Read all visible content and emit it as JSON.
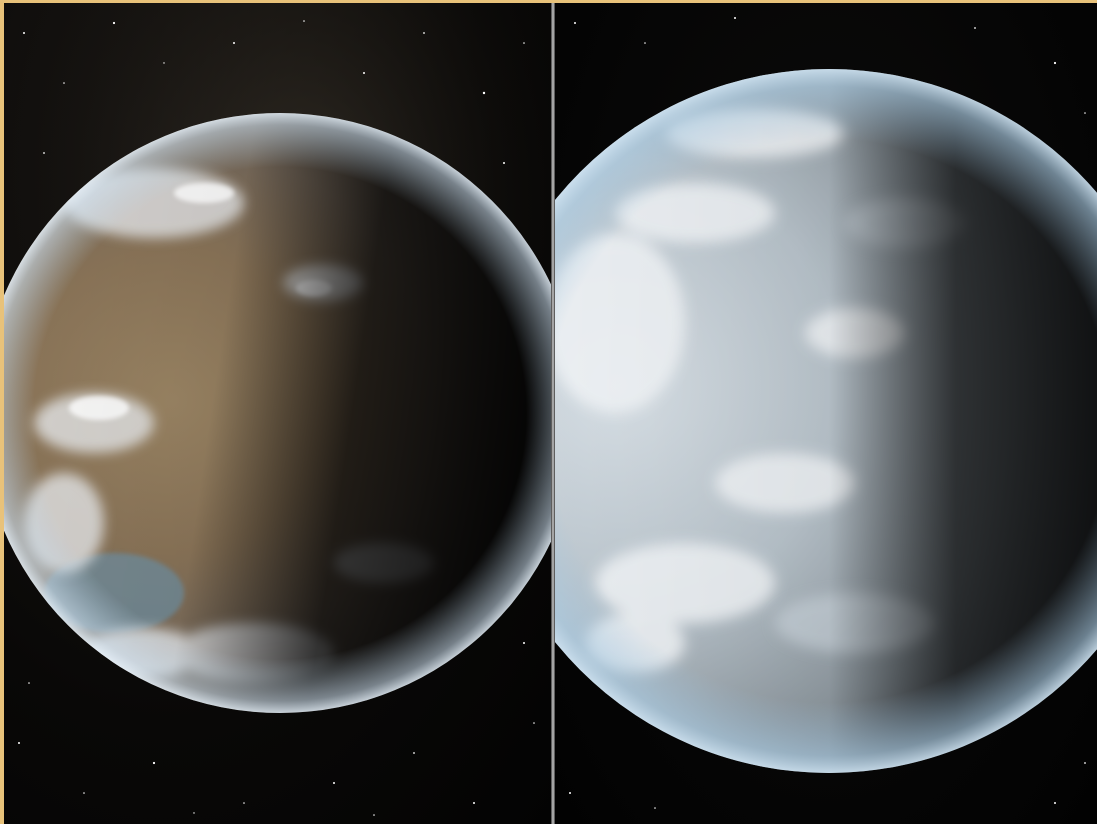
{
  "image": {
    "type": "side-by-side artist renderings of two planets against a starfield",
    "panels": [
      {
        "position": "left",
        "subject": "planet-left",
        "colors": {
          "land": "#8a7458",
          "cloud": "#e6e8ea",
          "ocean": "#6f8fa0",
          "night": "#0a0a0c"
        }
      },
      {
        "position": "right",
        "subject": "planet-right",
        "colors": {
          "ice": "#dfe8ef",
          "cloud": "#f2f5f8",
          "limb": "#9ec3de",
          "night": "#0c0d10"
        }
      }
    ],
    "border_color": "#e8c27a"
  }
}
